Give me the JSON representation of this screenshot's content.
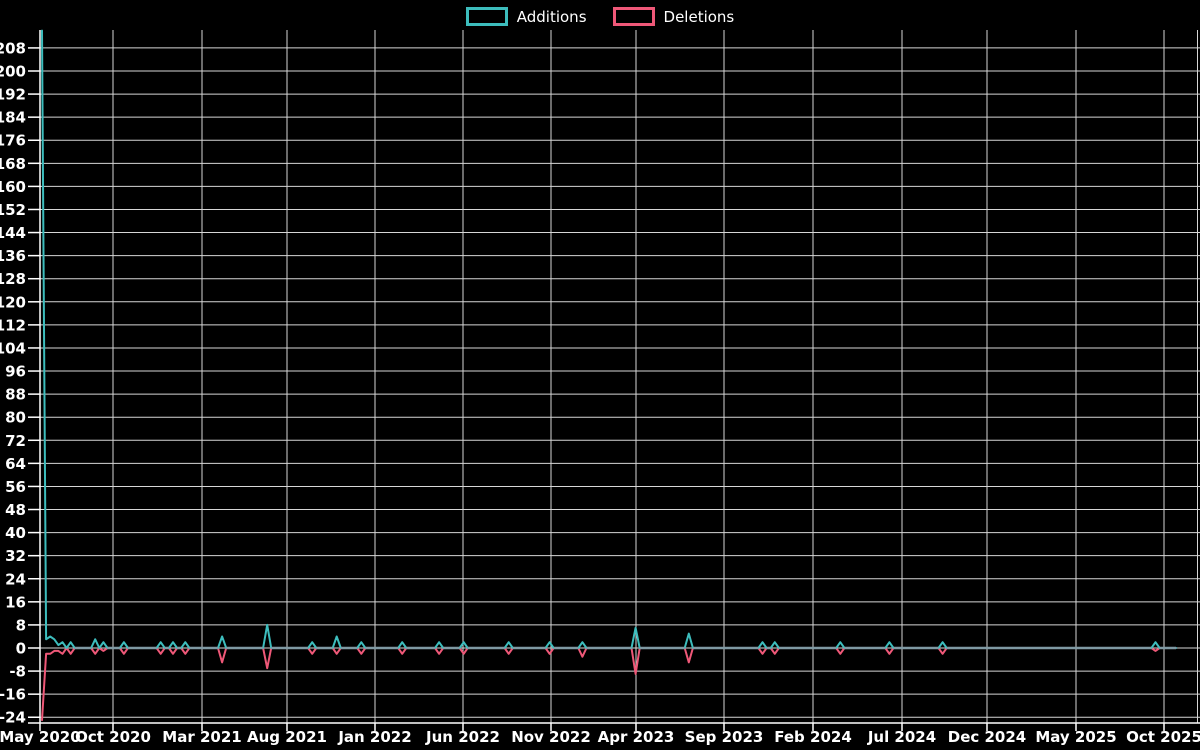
{
  "colors": {
    "additions": "#3dbdbd",
    "deletions": "#ef5878",
    "baseline_overlap": "#7f99a3",
    "grid": "#d6d6d6",
    "axis": "#ffffff",
    "text": "#ffffff",
    "background": "#000000"
  },
  "chart_data": {
    "type": "line",
    "title": "",
    "legend_position": "top",
    "grid": true,
    "x_axis": {
      "unit": "week",
      "start_label": "May 2020",
      "end_label": "Oct 2025",
      "tick_labels": [
        "May 2020",
        "Oct 2020",
        "Mar 2021",
        "Aug 2021",
        "Jan 2022",
        "Jun 2022",
        "Nov 2022",
        "Apr 2023",
        "Sep 2023",
        "Feb 2024",
        "Jul 2024",
        "Dec 2024",
        "May 2025",
        "Oct 2025"
      ]
    },
    "y_axis": {
      "min": -24,
      "max": 208,
      "step": 8
    },
    "series_meta": [
      {
        "name": "Additions",
        "color": "#3dbdbd"
      },
      {
        "name": "Deletions",
        "color": "#ef5878"
      }
    ],
    "weeks_total": 277,
    "points": [
      {
        "week": 0,
        "additions": 214,
        "deletions": -25
      },
      {
        "week": 1,
        "additions": 3,
        "deletions": -2
      },
      {
        "week": 2,
        "additions": 4,
        "deletions": -2
      },
      {
        "week": 3,
        "additions": 3,
        "deletions": -1
      },
      {
        "week": 4,
        "additions": 1,
        "deletions": -1
      },
      {
        "week": 5,
        "additions": 2,
        "deletions": -2
      },
      {
        "week": 7,
        "additions": 2,
        "deletions": -2
      },
      {
        "week": 13,
        "additions": 3,
        "deletions": -2
      },
      {
        "week": 15,
        "additions": 2,
        "deletions": -1
      },
      {
        "week": 20,
        "additions": 2,
        "deletions": -2
      },
      {
        "week": 29,
        "additions": 2,
        "deletions": -2
      },
      {
        "week": 32,
        "additions": 2,
        "deletions": -2
      },
      {
        "week": 35,
        "additions": 2,
        "deletions": -2
      },
      {
        "week": 44,
        "additions": 4,
        "deletions": -5
      },
      {
        "week": 55,
        "additions": 8,
        "deletions": -7
      },
      {
        "week": 66,
        "additions": 2,
        "deletions": -2
      },
      {
        "week": 72,
        "additions": 4,
        "deletions": -2
      },
      {
        "week": 78,
        "additions": 2,
        "deletions": -2
      },
      {
        "week": 88,
        "additions": 2,
        "deletions": -2
      },
      {
        "week": 97,
        "additions": 2,
        "deletions": -2
      },
      {
        "week": 103,
        "additions": 2,
        "deletions": -2
      },
      {
        "week": 114,
        "additions": 2,
        "deletions": -2
      },
      {
        "week": 124,
        "additions": 2,
        "deletions": -2
      },
      {
        "week": 132,
        "additions": 2,
        "deletions": -3
      },
      {
        "week": 145,
        "additions": 7,
        "deletions": -9
      },
      {
        "week": 158,
        "additions": 5,
        "deletions": -5
      },
      {
        "week": 176,
        "additions": 2,
        "deletions": -2
      },
      {
        "week": 179,
        "additions": 2,
        "deletions": -2
      },
      {
        "week": 195,
        "additions": 2,
        "deletions": -2
      },
      {
        "week": 207,
        "additions": 2,
        "deletions": -2
      },
      {
        "week": 220,
        "additions": 2,
        "deletions": -2
      },
      {
        "week": 272,
        "additions": 2,
        "deletions": -1
      }
    ]
  }
}
